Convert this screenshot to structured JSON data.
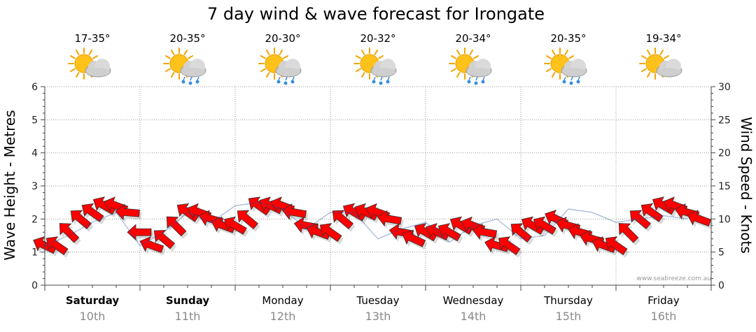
{
  "chart_data": {
    "type": "line",
    "title": "7 day wind & wave forecast for Irongate",
    "ylabel_left": "Wave Height - Metres",
    "ylabel_right": "Wind Speed - Knots",
    "y_left_ticks": [
      "0",
      "1",
      "2",
      "3",
      "4",
      "5",
      "6"
    ],
    "y_right_ticks": [
      "0",
      "5",
      "10",
      "15",
      "20",
      "25",
      "30"
    ],
    "ylim_left": [
      0,
      6
    ],
    "ylim_right": [
      0,
      30
    ],
    "credit": "www.seabreeze.com.au",
    "days": [
      {
        "name": "Saturday",
        "date": "10th",
        "temp": "17-35°",
        "weather": "partly-cloudy-icon",
        "bold": true
      },
      {
        "name": "Sunday",
        "date": "11th",
        "temp": "20-35°",
        "weather": "showers-icon",
        "bold": true
      },
      {
        "name": "Monday",
        "date": "12th",
        "temp": "20-30°",
        "weather": "showers-icon",
        "bold": false
      },
      {
        "name": "Tuesday",
        "date": "13th",
        "temp": "20-32°",
        "weather": "showers-icon",
        "bold": false
      },
      {
        "name": "Wednesday",
        "date": "14th",
        "temp": "20-34°",
        "weather": "showers-icon",
        "bold": false
      },
      {
        "name": "Thursday",
        "date": "15th",
        "temp": "20-35°",
        "weather": "showers-icon",
        "bold": false
      },
      {
        "name": "Friday",
        "date": "16th",
        "temp": "19-34°",
        "weather": "partly-cloudy-icon",
        "bold": false
      }
    ],
    "wind_arrow_colors": {
      "fresh": "#ff0000",
      "strong": "#ffff00",
      "outline": "#333333"
    },
    "series": [
      {
        "name": "Wind Speed - Knots",
        "x": [
          0,
          0.125,
          0.25,
          0.375,
          0.5,
          0.625,
          0.75,
          0.875,
          1,
          1.125,
          1.25,
          1.375,
          1.5,
          1.625,
          1.75,
          1.875,
          2,
          2.125,
          2.25,
          2.375,
          2.5,
          2.625,
          2.75,
          2.875,
          3,
          3.125,
          3.25,
          3.375,
          3.5,
          3.625,
          3.75,
          3.875,
          4,
          4.125,
          4.25,
          4.375,
          4.5,
          4.625,
          4.75,
          4.875,
          5,
          5.125,
          5.25,
          5.375,
          5.5,
          5.625,
          5.75,
          5.875,
          6,
          6.125,
          6.25,
          6.375,
          6.5,
          6.625,
          6.75,
          6.875
        ],
        "values": [
          6,
          6,
          8,
          10,
          11,
          12,
          12,
          11,
          8,
          6,
          7,
          9,
          11,
          11,
          10,
          9,
          9,
          10,
          12,
          12,
          12,
          11,
          9,
          8,
          8,
          10,
          11,
          11,
          11,
          10,
          8,
          7,
          8,
          8,
          8,
          9,
          9,
          8,
          6,
          6,
          8,
          9,
          9,
          10,
          9,
          8,
          7,
          6,
          6,
          8,
          10,
          11,
          12,
          12,
          11,
          10
        ],
        "strong_from": 14
      },
      {
        "name": "Wave Height - Metres",
        "x": [
          0,
          0.25,
          0.5,
          0.75,
          1,
          1.25,
          1.5,
          1.75,
          2,
          2.25,
          2.5,
          2.75,
          3,
          3.25,
          3.5,
          3.75,
          4,
          4.25,
          4.5,
          4.75,
          5,
          5.25,
          5.5,
          5.75,
          6,
          6.25,
          6.5,
          6.75
        ],
        "values": [
          1.2,
          1.5,
          1.9,
          2.2,
          1.2,
          1.6,
          2.2,
          1.9,
          2.4,
          2.5,
          2.3,
          1.7,
          2.2,
          2.2,
          1.4,
          1.7,
          1.9,
          1.3,
          1.8,
          2.0,
          1.4,
          1.5,
          2.3,
          2.2,
          1.9,
          2.0,
          2.1,
          2.0
        ]
      }
    ]
  }
}
